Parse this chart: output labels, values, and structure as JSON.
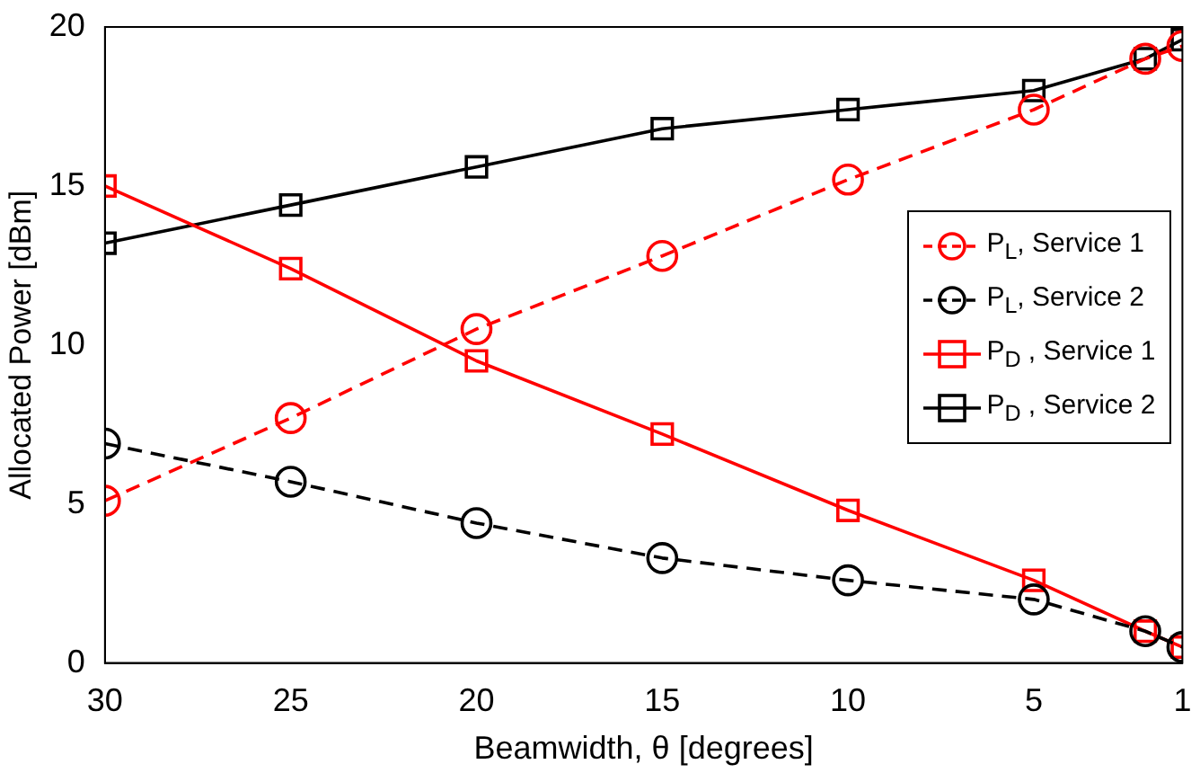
{
  "chart_data": {
    "type": "line",
    "xlabel": "Beamwidth, θ [degrees]",
    "ylabel": "Allocated Power [dBm]",
    "x": [
      30,
      25,
      20,
      15,
      10,
      5,
      2,
      1
    ],
    "xlim": [
      30,
      1
    ],
    "xticks": [
      30,
      25,
      20,
      15,
      10,
      5,
      1
    ],
    "ylim": [
      0,
      20
    ],
    "yticks": [
      0,
      5,
      10,
      15,
      20
    ],
    "grid": false,
    "legend": "right",
    "series": [
      {
        "name": "P$_{L}$, Service 1",
        "color": "#ff0000",
        "marker": "circle",
        "line_style": "dashed",
        "values": [
          5.1,
          7.7,
          10.5,
          12.8,
          15.2,
          17.4,
          19.0,
          19.4
        ]
      },
      {
        "name": "P$_{L}$, Service 2",
        "color": "#000000",
        "marker": "circle",
        "line_style": "dashed",
        "values": [
          6.9,
          5.7,
          4.4,
          3.3,
          2.6,
          2.0,
          1.0,
          0.5
        ]
      },
      {
        "name": "P$_{D}$ , Service 1",
        "color": "#ff0000",
        "marker": "square",
        "line_style": "solid",
        "values": [
          15.0,
          12.4,
          9.5,
          7.2,
          4.8,
          2.6,
          1.0,
          0.5
        ]
      },
      {
        "name": "P$_{D}$ , Service 2",
        "color": "#000000",
        "marker": "square",
        "line_style": "solid",
        "values": [
          13.2,
          14.4,
          15.6,
          16.8,
          17.4,
          18.0,
          19.0,
          19.6
        ]
      }
    ]
  }
}
